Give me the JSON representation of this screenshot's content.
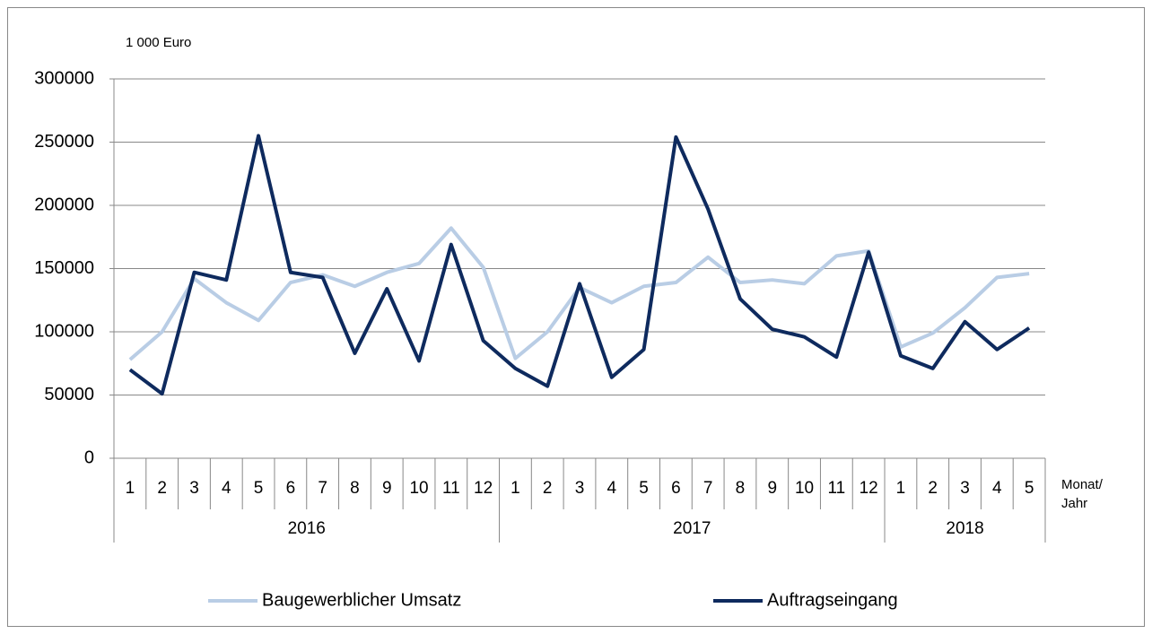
{
  "chart_data": {
    "type": "line",
    "y_label": "1 000 Euro",
    "x_label": [
      "Monat/",
      "Jahr"
    ],
    "groups": [
      {
        "name": "2016",
        "categories": [
          "1",
          "2",
          "3",
          "4",
          "5",
          "6",
          "7",
          "8",
          "9",
          "10",
          "11",
          "12"
        ]
      },
      {
        "name": "2017",
        "categories": [
          "1",
          "2",
          "3",
          "4",
          "5",
          "6",
          "7",
          "8",
          "9",
          "10",
          "11",
          "12"
        ]
      },
      {
        "name": "2018",
        "categories": [
          "1",
          "2",
          "3",
          "4",
          "5"
        ]
      }
    ],
    "series": [
      {
        "name": "Baugewerblicher Umsatz",
        "color": "#b9cde5",
        "values": [
          78000,
          100000,
          142000,
          123000,
          109000,
          139000,
          145000,
          136000,
          147000,
          154000,
          182000,
          151000,
          79000,
          100000,
          135000,
          123000,
          136000,
          139000,
          159000,
          139000,
          141000,
          138000,
          160000,
          164000,
          88000,
          99000,
          119000,
          143000,
          146000
        ]
      },
      {
        "name": "Auftragseingang",
        "color": "#0e2a5e",
        "values": [
          70000,
          51000,
          147000,
          141000,
          255000,
          147000,
          143000,
          83000,
          134000,
          77000,
          169000,
          93000,
          71000,
          57000,
          138000,
          64000,
          86000,
          254000,
          197000,
          126000,
          102000,
          96000,
          80000,
          163000,
          81000,
          71000,
          108000,
          86000,
          103000
        ]
      }
    ],
    "ylim": [
      0,
      300000
    ],
    "yticks": [
      0,
      50000,
      100000,
      150000,
      200000,
      250000,
      300000
    ],
    "grid": true,
    "legend": "bottom"
  }
}
